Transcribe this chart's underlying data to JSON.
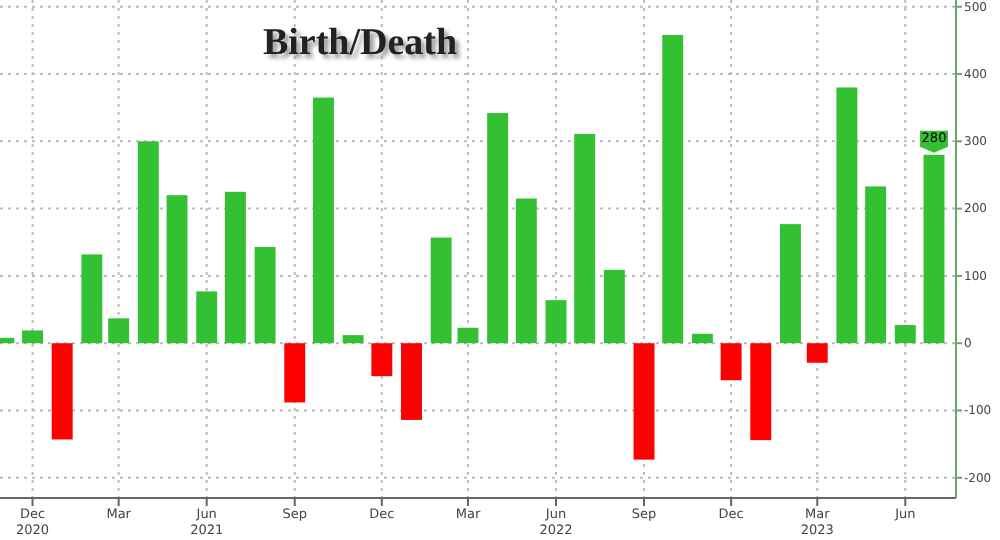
{
  "chart_data": {
    "type": "bar",
    "title": "Birth/Death",
    "x": [
      "2020-11",
      "2020-12",
      "2021-01",
      "2021-02",
      "2021-03",
      "2021-04",
      "2021-05",
      "2021-06",
      "2021-07",
      "2021-08",
      "2021-09",
      "2021-10",
      "2021-11",
      "2021-12",
      "2022-01",
      "2022-02",
      "2022-03",
      "2022-04",
      "2022-05",
      "2022-06",
      "2022-07",
      "2022-08",
      "2022-09",
      "2022-10",
      "2022-11",
      "2022-12",
      "2023-01",
      "2023-02",
      "2023-03",
      "2023-04",
      "2023-05",
      "2023-06",
      "2023-07"
    ],
    "values": [
      8,
      19,
      -143,
      132,
      37,
      300,
      220,
      77,
      225,
      143,
      -88,
      365,
      12,
      -49,
      -114,
      157,
      23,
      342,
      215,
      64,
      311,
      109,
      -173,
      458,
      14,
      -55,
      -144,
      177,
      -29,
      380,
      233,
      27,
      280
    ],
    "colors": [
      "#33c033",
      "#33c033",
      "#ff0000",
      "#33c033",
      "#33c033",
      "#33c033",
      "#33c033",
      "#33c033",
      "#33c033",
      "#33c033",
      "#ff0000",
      "#33c033",
      "#33c033",
      "#ff0000",
      "#ff0000",
      "#33c033",
      "#33c033",
      "#33c033",
      "#33c033",
      "#33c033",
      "#33c033",
      "#33c033",
      "#ff0000",
      "#33c033",
      "#33c033",
      "#ff0000",
      "#ff0000",
      "#33c033",
      "#ff0000",
      "#33c033",
      "#33c033",
      "#33c033",
      "#33c033"
    ],
    "value_labels": [
      null,
      null,
      null,
      null,
      null,
      null,
      null,
      null,
      null,
      null,
      null,
      null,
      null,
      null,
      null,
      null,
      null,
      null,
      null,
      null,
      null,
      null,
      null,
      null,
      null,
      null,
      null,
      null,
      null,
      null,
      null,
      null,
      "280"
    ],
    "xlim": [
      "2020-10-28",
      "2023-07-24"
    ],
    "xticks": [
      {
        "value": "2020-12",
        "label": "Dec\n2020"
      },
      {
        "value": "2021-03",
        "label": "Mar"
      },
      {
        "value": "2021-06",
        "label": "Jun\n2021"
      },
      {
        "value": "2021-09",
        "label": "Sep"
      },
      {
        "value": "2021-12",
        "label": "Dec"
      },
      {
        "value": "2022-03",
        "label": "Mar"
      },
      {
        "value": "2022-06",
        "label": "Jun\n2022"
      },
      {
        "value": "2022-09",
        "label": "Sep"
      },
      {
        "value": "2022-12",
        "label": "Dec"
      },
      {
        "value": "2023-03",
        "label": "Mar\n2023"
      },
      {
        "value": "2023-06",
        "label": "Jun"
      }
    ],
    "ylim": [
      -230,
      510
    ],
    "yticks": [
      -200,
      -100,
      0,
      100,
      200,
      300,
      400,
      500
    ],
    "grid": true
  }
}
